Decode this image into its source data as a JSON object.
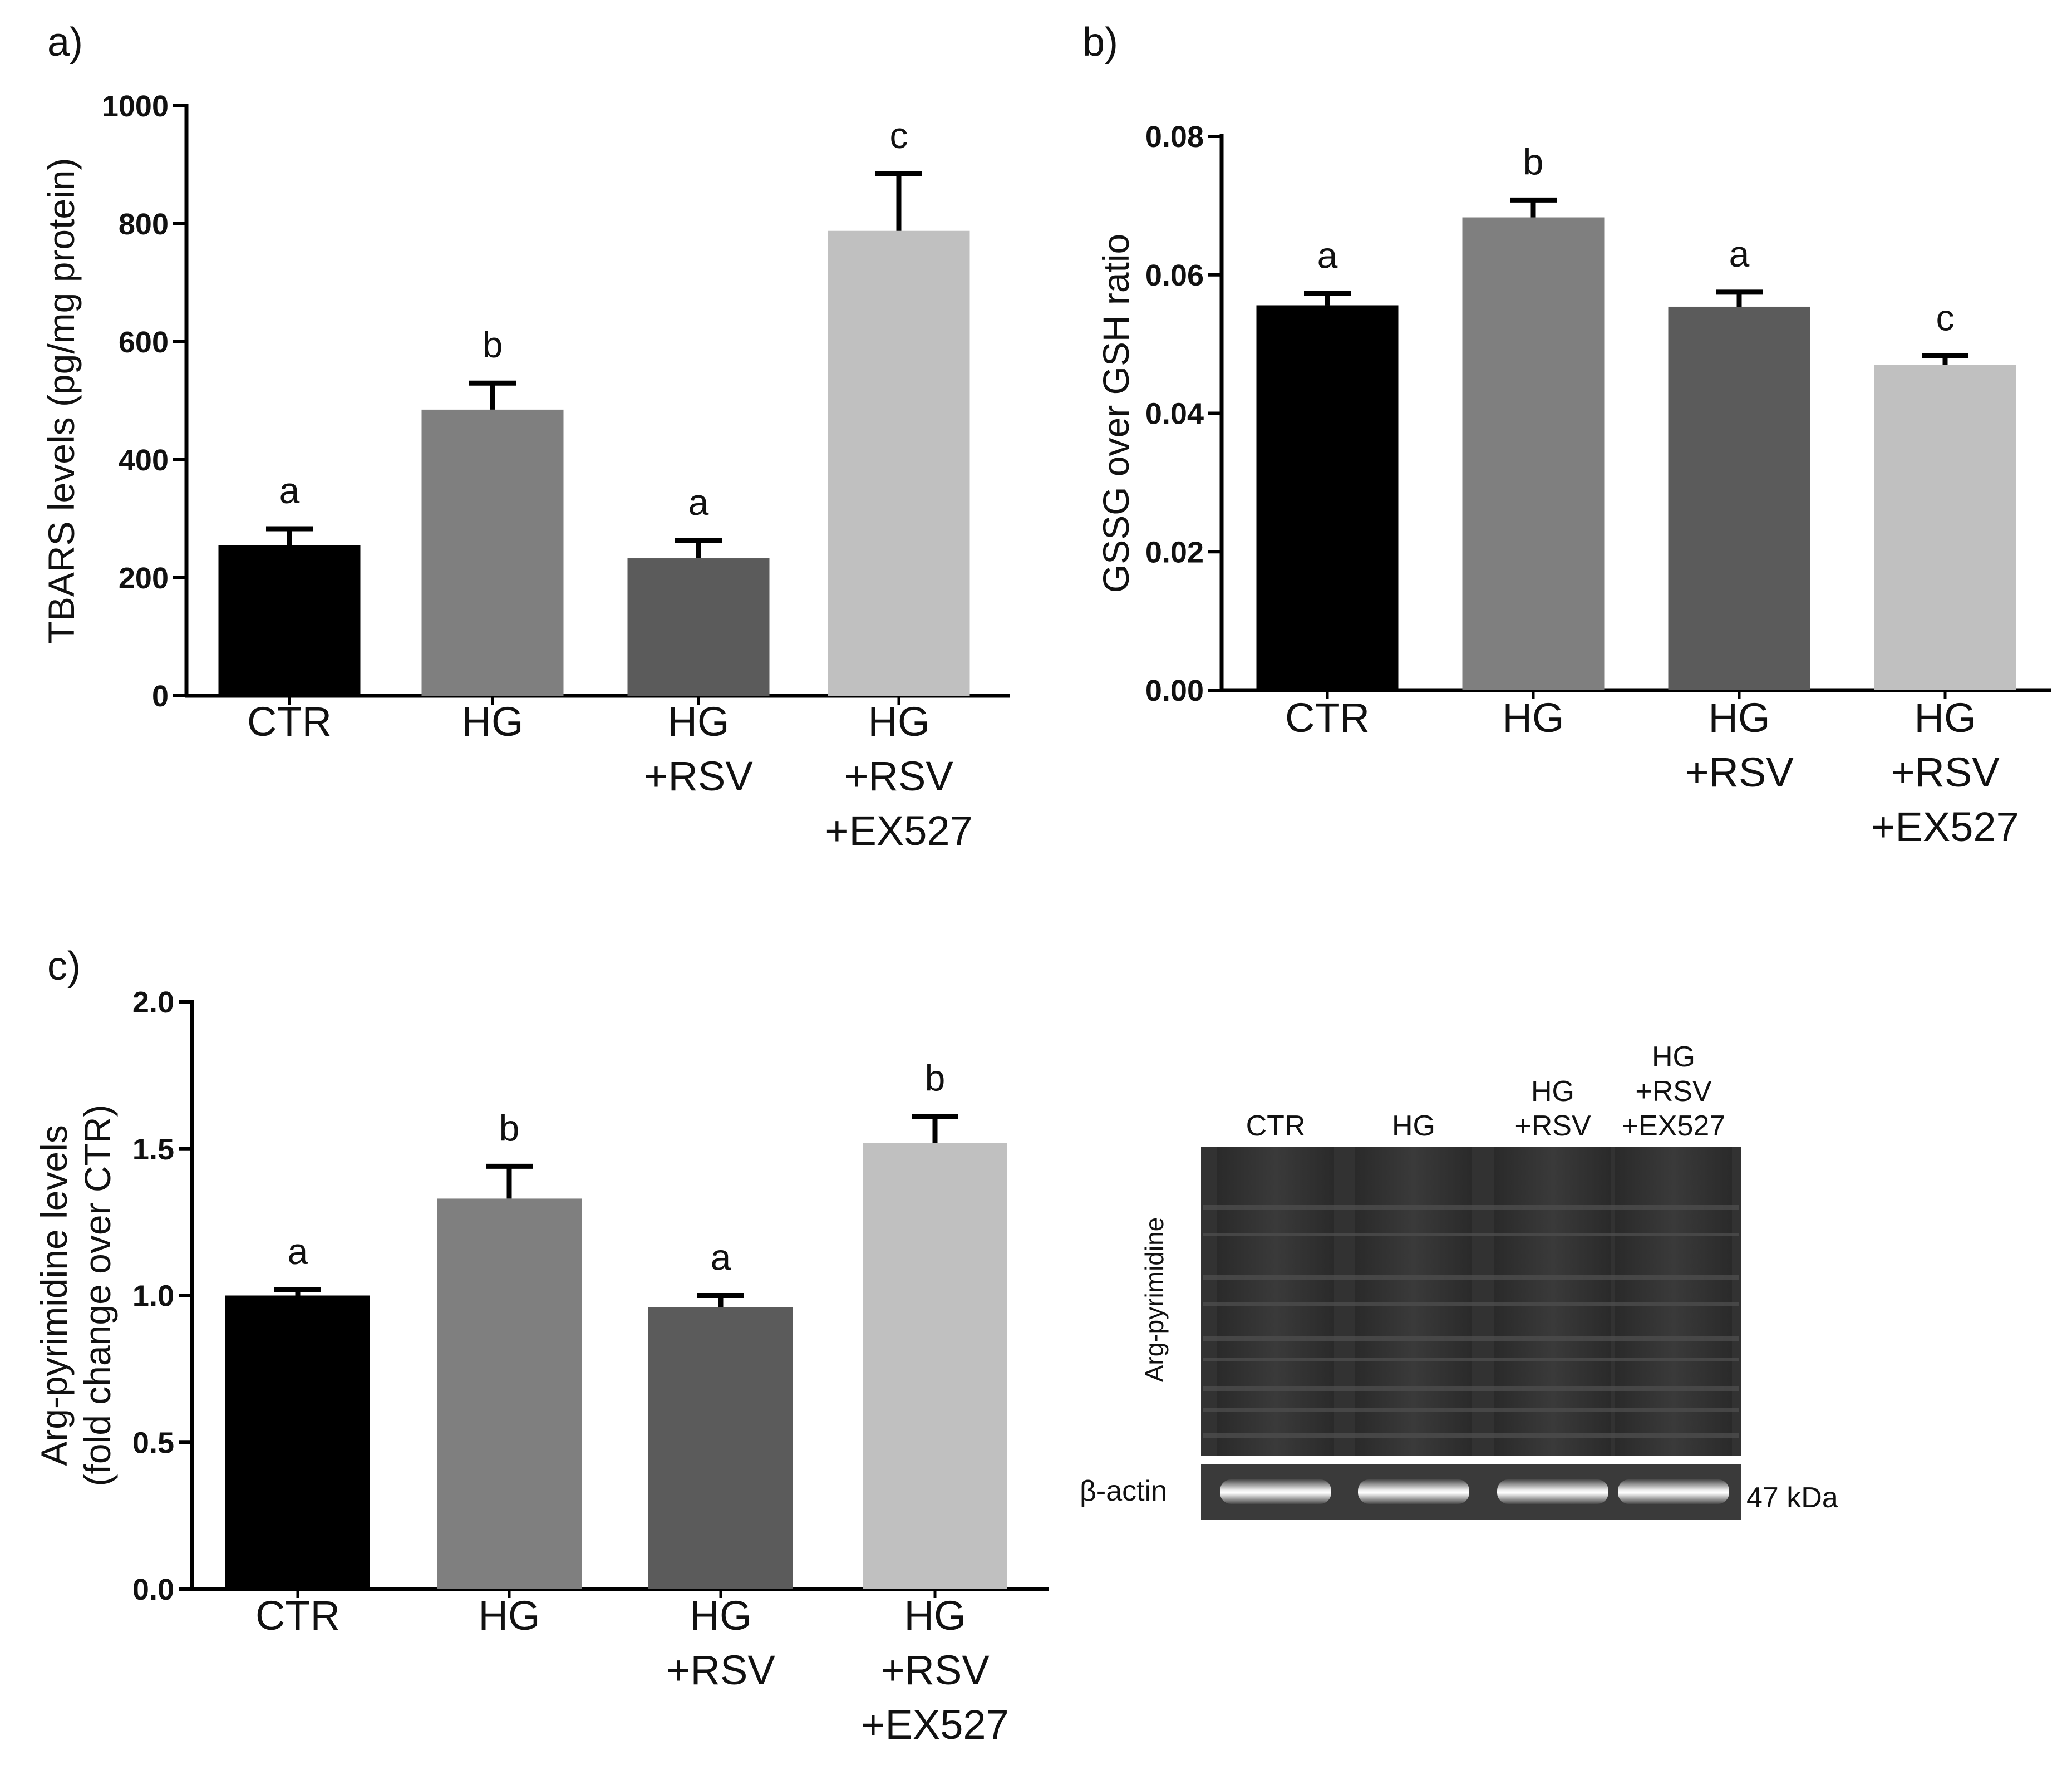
{
  "colors": {
    "CTR": "#000000",
    "HG": "#7f7f7f",
    "HG_RSV": "#5b5b5b",
    "HG_RSV_EX527": "#c0c0c0"
  },
  "chart_data": [
    {
      "panel": "a)",
      "type": "bar",
      "ylabel": "TBARS levels (pg/mg protein)",
      "ylim": [
        0,
        1000
      ],
      "yticks": [
        "0",
        "200",
        "400",
        "600",
        "800",
        "1000"
      ],
      "categories": [
        [
          "CTR"
        ],
        [
          "HG"
        ],
        [
          "HG",
          "+RSV"
        ],
        [
          "HG",
          "+RSV",
          "+EX527"
        ]
      ],
      "values": [
        255,
        485,
        233,
        788
      ],
      "errors": [
        28,
        45,
        30,
        97
      ],
      "letters": [
        "a",
        "b",
        "a",
        "c"
      ]
    },
    {
      "panel": "b)",
      "type": "bar",
      "ylabel": "GSSG over GSH ratio",
      "ylim": [
        0,
        0.08
      ],
      "yticks": [
        "0.00",
        "0.02",
        "0.04",
        "0.06",
        "0.08"
      ],
      "categories": [
        [
          "CTR"
        ],
        [
          "HG"
        ],
        [
          "HG",
          "+RSV"
        ],
        [
          "HG",
          "+RSV",
          "+EX527"
        ]
      ],
      "values": [
        0.0556,
        0.0683,
        0.0554,
        0.047
      ],
      "errors": [
        0.0017,
        0.0025,
        0.0021,
        0.0013
      ],
      "letters": [
        "a",
        "b",
        "a",
        "c"
      ]
    },
    {
      "panel": "c)",
      "type": "bar",
      "ylabel": [
        "Arg-pyrimidine levels",
        "(fold change over CTR)"
      ],
      "ylim": [
        0,
        2.0
      ],
      "yticks": [
        "0.0",
        "0.5",
        "1.0",
        "1.5",
        "2.0"
      ],
      "categories": [
        [
          "CTR"
        ],
        [
          "HG"
        ],
        [
          "HG",
          "+RSV"
        ],
        [
          "HG",
          "+RSV",
          "+EX527"
        ]
      ],
      "values": [
        1.0,
        1.33,
        0.96,
        1.52
      ],
      "errors": [
        0.02,
        0.11,
        0.04,
        0.09
      ],
      "letters": [
        "a",
        "b",
        "a",
        "b"
      ]
    }
  ],
  "blot": {
    "lanes": [
      [
        "CTR"
      ],
      [
        "HG"
      ],
      [
        "HG",
        "+RSV"
      ],
      [
        "HG",
        "+RSV",
        "+EX527"
      ]
    ],
    "main_label": "Arg-pyrimidine",
    "loading_label": "β-actin",
    "size_label": "47 kDa"
  }
}
